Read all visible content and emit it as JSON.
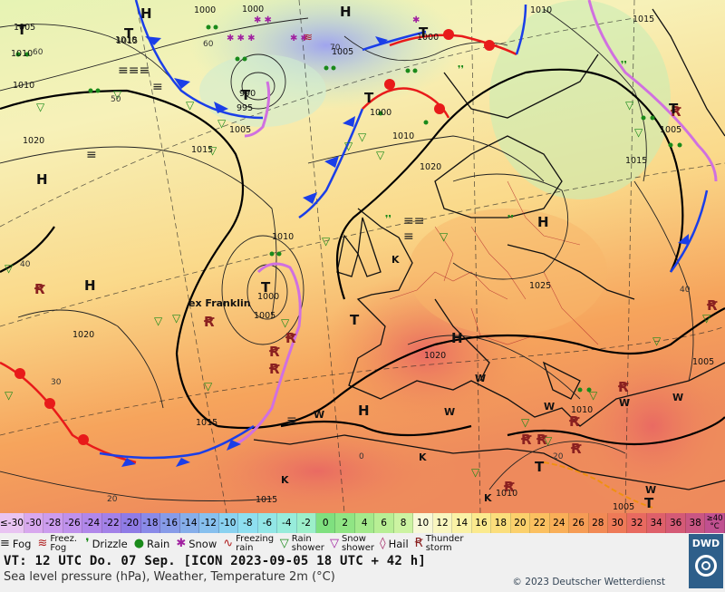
{
  "map": {
    "place_labels": [
      "ex Franklin"
    ],
    "pressure_labels": [
      "1005",
      "1010",
      "1010",
      "1015",
      "1000",
      "1000",
      "1005",
      "1000",
      "1005",
      "1020",
      "1015",
      "990",
      "995",
      "1005",
      "1000",
      "1010",
      "1020",
      "1010",
      "1000",
      "1005",
      "1020",
      "1015",
      "1025",
      "1020",
      "1015",
      "1015",
      "1010",
      "1005",
      "1010",
      "1015",
      "1005",
      "1010",
      "1010"
    ],
    "high_markers": [
      "H",
      "H",
      "H",
      "H",
      "H",
      "H",
      "H"
    ],
    "low_markers": [
      "T",
      "T",
      "T",
      "T",
      "T",
      "T",
      "T",
      "T",
      "T",
      "T"
    ],
    "other_markers": [
      "W",
      "W",
      "W",
      "W",
      "W",
      "W",
      "W",
      "K",
      "K",
      "K",
      "K"
    ],
    "lat_labels": [
      "60",
      "50",
      "40",
      "30",
      "20",
      "60",
      "70",
      "40",
      "0",
      "20"
    ]
  },
  "temperature_scale": {
    "unit_label": "≥40 °C",
    "cells": [
      {
        "label": "≤-30",
        "color": "#e9c4f2"
      },
      {
        "label": "-30",
        "color": "#d8a8ee"
      },
      {
        "label": "-28",
        "color": "#cc9cee"
      },
      {
        "label": "-26",
        "color": "#bf91ec"
      },
      {
        "label": "-24",
        "color": "#b187ea"
      },
      {
        "label": "-22",
        "color": "#a381e8"
      },
      {
        "label": "-20",
        "color": "#8f7be6"
      },
      {
        "label": "-18",
        "color": "#8a8ae8"
      },
      {
        "label": "-16",
        "color": "#879be8"
      },
      {
        "label": "-14",
        "color": "#86aeea"
      },
      {
        "label": "-12",
        "color": "#87c0ee"
      },
      {
        "label": "-10",
        "color": "#8ad2f0"
      },
      {
        "label": "-8",
        "color": "#8edff0"
      },
      {
        "label": "-6",
        "color": "#92e6e6"
      },
      {
        "label": "-4",
        "color": "#97ecdb"
      },
      {
        "label": "-2",
        "color": "#9cefca"
      },
      {
        "label": "0",
        "color": "#7fe07f"
      },
      {
        "label": "2",
        "color": "#90e584"
      },
      {
        "label": "4",
        "color": "#a4ea8c"
      },
      {
        "label": "6",
        "color": "#b8ef95"
      },
      {
        "label": "8",
        "color": "#ccf3a2"
      },
      {
        "label": "10",
        "color": "#f8f8d8"
      },
      {
        "label": "12",
        "color": "#f9f6bf"
      },
      {
        "label": "14",
        "color": "#faf2a6"
      },
      {
        "label": "16",
        "color": "#fbea8e"
      },
      {
        "label": "18",
        "color": "#fbde7c"
      },
      {
        "label": "20",
        "color": "#fbd06c"
      },
      {
        "label": "22",
        "color": "#fbc060"
      },
      {
        "label": "24",
        "color": "#f9af58"
      },
      {
        "label": "26",
        "color": "#f69c55"
      },
      {
        "label": "28",
        "color": "#f28a55"
      },
      {
        "label": "30",
        "color": "#ee7a58"
      },
      {
        "label": "32",
        "color": "#e86a60"
      },
      {
        "label": "34",
        "color": "#de606a"
      },
      {
        "label": "36",
        "color": "#d45a76"
      },
      {
        "label": "38",
        "color": "#c95683"
      }
    ]
  },
  "weather_legend": [
    {
      "symbol": "≡",
      "label": "Fog",
      "color": "#222",
      "name": "fog"
    },
    {
      "symbol": "≋",
      "label": "Freez. Fog",
      "color": "#b02020",
      "name": "freezing-fog"
    },
    {
      "symbol": "❜",
      "label": "Drizzle",
      "color": "#1a8a1a",
      "name": "drizzle"
    },
    {
      "symbol": "●",
      "label": "Rain",
      "color": "#1a8a1a",
      "name": "rain"
    },
    {
      "symbol": "✱",
      "label": "Snow",
      "color": "#a020a0",
      "name": "snow"
    },
    {
      "symbol": "∿",
      "label": "Freezing rain",
      "color": "#b02020",
      "name": "freezing-rain"
    },
    {
      "symbol": "▽",
      "label": "Rain shower",
      "color": "#1a8a1a",
      "name": "rain-shower"
    },
    {
      "symbol": "▽",
      "label": "Snow shower",
      "color": "#a020a0",
      "name": "snow-shower"
    },
    {
      "symbol": "◊",
      "label": "Hail",
      "color": "#a02060",
      "name": "hail"
    },
    {
      "symbol": "Ꞧ",
      "label": "Thunder storm",
      "color": "#8a2020",
      "name": "thunderstorm"
    }
  ],
  "footer": {
    "valid_time": "VT: 12 UTC Do.  07 Sep. [ICON 2023-09-05  18 UTC + 42 h]",
    "description": "Sea level pressure (hPa), Weather, Temperature 2m (°C)",
    "copyright": "© 2023 Deutscher Wetterdienst",
    "logo_text": "DWD"
  }
}
